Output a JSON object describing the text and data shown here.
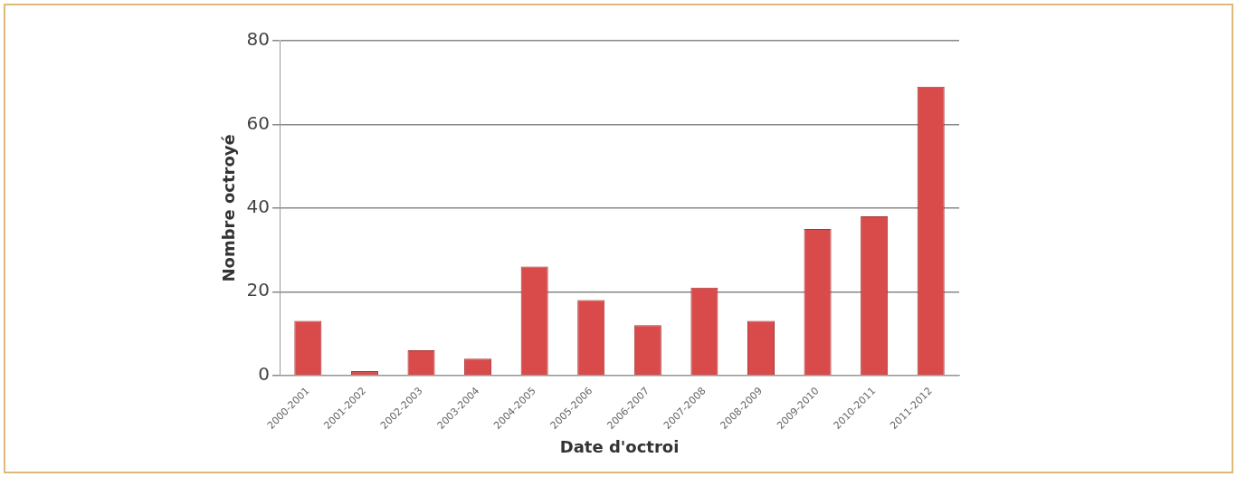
{
  "chart_data": {
    "type": "bar",
    "xlabel": "Date d'octroi",
    "ylabel": "Nombre octroyé",
    "categories": [
      "2000-2001",
      "2001-2002",
      "2002-2003",
      "2003-2004",
      "2004-2005",
      "2005-2006",
      "2006-2007",
      "2007-2008",
      "2008-2009",
      "2009-2010",
      "2010-2011",
      "2011-2012"
    ],
    "values": [
      13,
      1,
      6,
      4,
      26,
      18,
      12,
      21,
      13,
      35,
      38,
      69
    ],
    "color": "#d94a4a",
    "ylim": [
      0,
      80
    ],
    "yticks": [
      0,
      20,
      40,
      60,
      80
    ],
    "grid": "y",
    "legend": false
  }
}
